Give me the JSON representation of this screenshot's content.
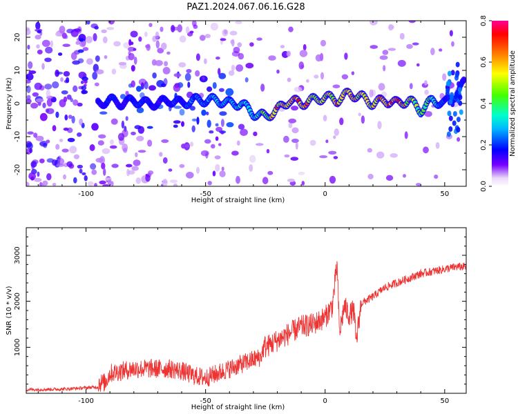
{
  "title": "PAZ1.2024.067.06.16.G28",
  "chart_data": [
    {
      "type": "heatmap",
      "xlabel": "Height of straight line (km)",
      "ylabel": "Frequency (Hz)",
      "xlim": [
        -125,
        59
      ],
      "ylim": [
        -25,
        25
      ],
      "xticks": [
        -100,
        -50,
        0,
        50
      ],
      "yticks": [
        -20,
        -10,
        0,
        10,
        20
      ],
      "colorbar": {
        "label": "Normalized spectral amplitude",
        "range": [
          0,
          0.8
        ],
        "ticks": [
          0.0,
          0.2,
          0.4,
          0.6,
          0.8
        ],
        "colormap": "rainbow"
      },
      "ridge": {
        "description_points_x": [
          -95,
          -90,
          -85,
          -80,
          -75,
          -70,
          -65,
          -60,
          -55,
          -50,
          -45,
          -40,
          -35,
          -30,
          -25,
          -20,
          -15,
          -10,
          -5,
          0,
          5,
          10,
          15,
          20,
          25,
          30,
          35,
          40,
          45,
          50,
          55,
          58
        ],
        "frequency_hz": [
          0,
          1,
          0,
          1,
          0,
          0,
          1,
          0,
          1,
          1,
          1,
          0,
          0,
          -3,
          -4,
          -2,
          1,
          0,
          1,
          2,
          1,
          3,
          2,
          0,
          1,
          0,
          1,
          -2,
          1,
          0,
          3,
          6
        ],
        "amplitude": [
          0.15,
          0.2,
          0.15,
          0.2,
          0.2,
          0.15,
          0.2,
          0.2,
          0.25,
          0.25,
          0.3,
          0.3,
          0.35,
          0.35,
          0.45,
          0.65,
          0.6,
          0.7,
          0.6,
          0.55,
          0.65,
          0.6,
          0.6,
          0.55,
          0.65,
          0.7,
          0.55,
          0.45,
          0.4,
          0.2,
          0.2,
          0.15
        ]
      }
    },
    {
      "type": "line",
      "xlabel": "Height of straight line (km)",
      "ylabel": "SNR (10 * v/v)",
      "xlim": [
        -125,
        59
      ],
      "ylim": [
        0,
        3600
      ],
      "xticks": [
        -100,
        -50,
        0,
        50
      ],
      "yticks": [
        1000,
        2000,
        3000
      ],
      "color": "#ee3333",
      "series": [
        {
          "x": [
            -125,
            -110,
            -100,
            -92,
            -90,
            -85,
            -80,
            -75,
            -70,
            -65,
            -60,
            -55,
            -50,
            -45,
            -40,
            -35,
            -30,
            -27,
            -25,
            -20,
            -15,
            -10,
            -5,
            0,
            3,
            5,
            6,
            8,
            10,
            12,
            13,
            15,
            20,
            25,
            30,
            35,
            40,
            45,
            50,
            55,
            59
          ],
          "y": [
            80,
            90,
            120,
            150,
            350,
            400,
            450,
            450,
            450,
            450,
            400,
            300,
            250,
            350,
            450,
            550,
            650,
            700,
            1000,
            1150,
            1300,
            1450,
            1500,
            1650,
            1900,
            2800,
            1300,
            1900,
            1700,
            1800,
            1100,
            1950,
            2100,
            2300,
            2400,
            2500,
            2600,
            2650,
            2700,
            2750,
            2750
          ]
        }
      ]
    }
  ]
}
